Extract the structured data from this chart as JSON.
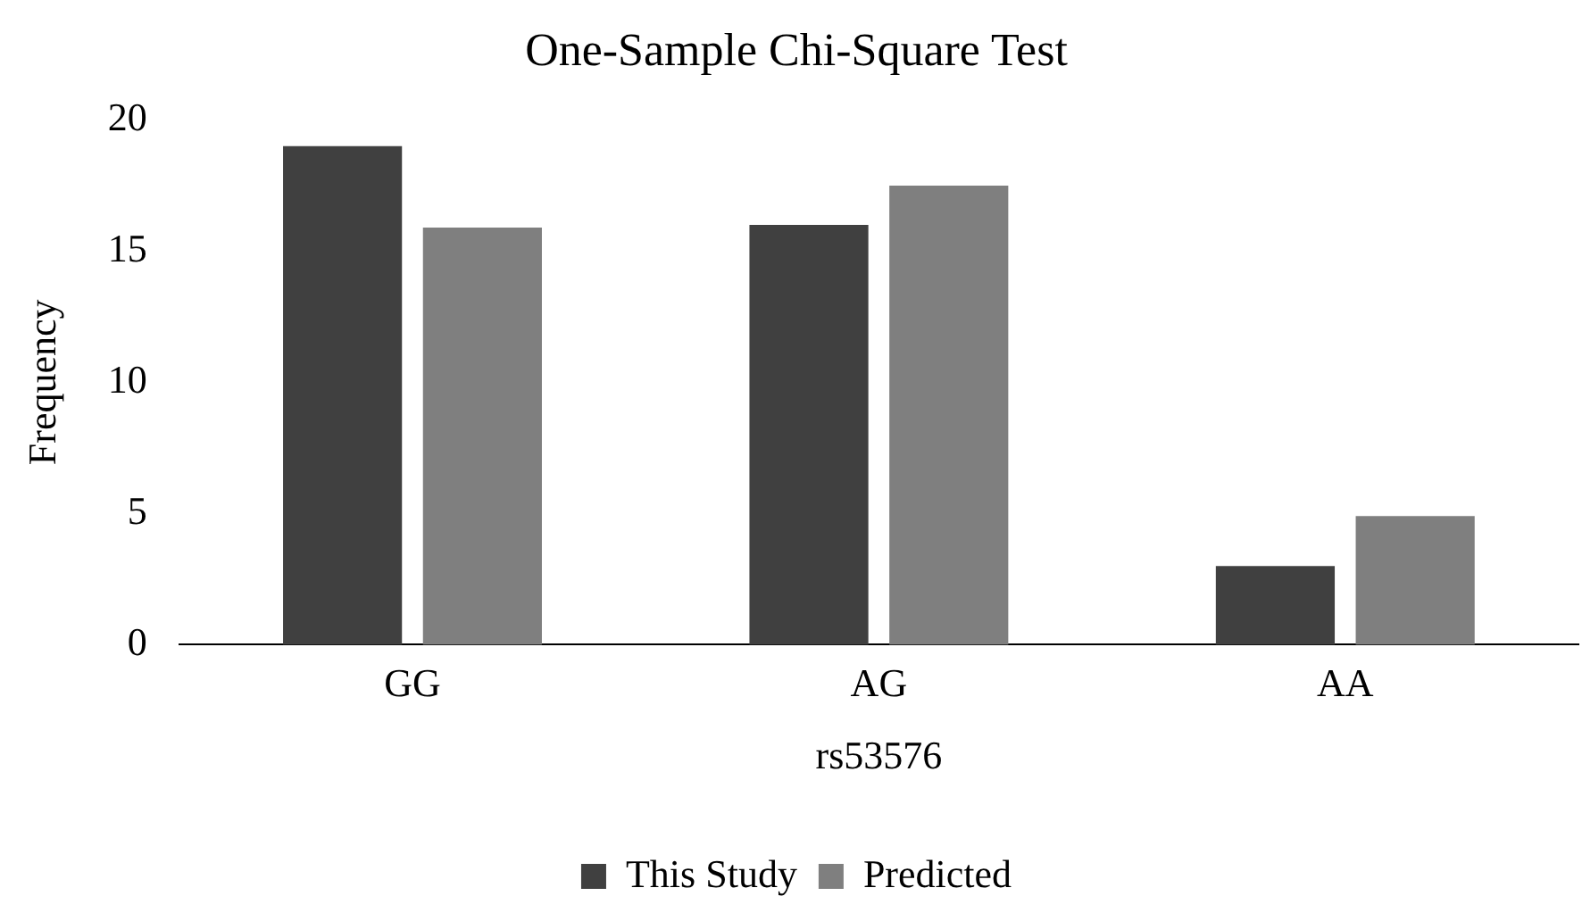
{
  "chart_data": {
    "type": "bar",
    "title": "One-Sample Chi-Square Test",
    "xlabel": "rs53576",
    "ylabel": "Frequency",
    "categories": [
      "GG",
      "AG",
      "AA"
    ],
    "series": [
      {
        "name": "This Study",
        "color": "#404040",
        "values": [
          19,
          16,
          3
        ]
      },
      {
        "name": "Predicted",
        "color": "#7f7f7f",
        "values": [
          15.9,
          17.5,
          4.9
        ]
      }
    ],
    "ylim": [
      0,
      20
    ],
    "yticks": [
      0,
      5,
      10,
      15,
      20
    ],
    "grid": false,
    "legend": "bottom"
  }
}
